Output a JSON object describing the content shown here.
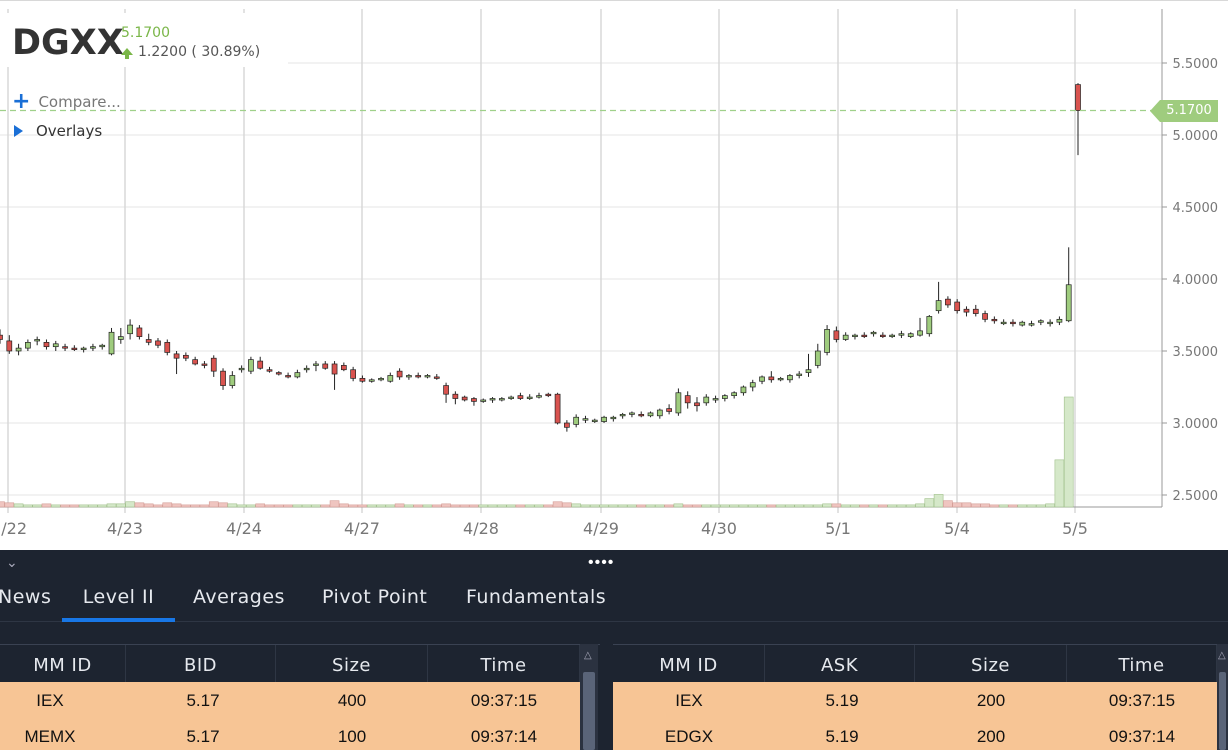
{
  "ticker": {
    "symbol": "DGXX",
    "last_price": "5.1700",
    "change": "1.2200 ( 30.89%)",
    "change_color": "#7ab648"
  },
  "chart_controls": {
    "compare_label": "Compare...",
    "overlays_label": "Overlays"
  },
  "price_tag": "5.1700",
  "chart_data": {
    "type": "candlestick",
    "y_ticks": [
      "5.5000",
      "5.0000",
      "4.5000",
      "4.0000",
      "3.5000",
      "3.0000",
      "2.5000"
    ],
    "ylim": [
      2.45,
      5.65
    ],
    "x_ticks": [
      "/22",
      "4/23",
      "4/24",
      "4/27",
      "4/28",
      "4/29",
      "4/30",
      "5/1",
      "5/4",
      "5/5"
    ],
    "last_price_line": 5.17,
    "colors": {
      "up": "#9fcc7e",
      "down": "#d9534f",
      "grid": "#e6e6e6",
      "vol_up": "#d5e8c9",
      "vol_down": "#efc5c0"
    },
    "candles": [
      [
        3.61,
        3.65,
        3.55,
        3.58
      ],
      [
        3.57,
        3.61,
        3.48,
        3.5
      ],
      [
        3.5,
        3.55,
        3.47,
        3.52
      ],
      [
        3.52,
        3.58,
        3.5,
        3.56
      ],
      [
        3.57,
        3.6,
        3.54,
        3.58
      ],
      [
        3.56,
        3.58,
        3.51,
        3.53
      ],
      [
        3.53,
        3.57,
        3.5,
        3.55
      ],
      [
        3.53,
        3.55,
        3.5,
        3.52
      ],
      [
        3.52,
        3.54,
        3.5,
        3.51
      ],
      [
        3.51,
        3.53,
        3.49,
        3.52
      ],
      [
        3.52,
        3.55,
        3.5,
        3.53
      ],
      [
        3.53,
        3.55,
        3.51,
        3.54
      ],
      [
        3.48,
        3.66,
        3.47,
        3.63
      ],
      [
        3.58,
        3.66,
        3.55,
        3.6
      ],
      [
        3.62,
        3.72,
        3.58,
        3.68
      ],
      [
        3.66,
        3.68,
        3.58,
        3.6
      ],
      [
        3.58,
        3.62,
        3.54,
        3.56
      ],
      [
        3.57,
        3.59,
        3.52,
        3.54
      ],
      [
        3.56,
        3.58,
        3.47,
        3.49
      ],
      [
        3.48,
        3.5,
        3.34,
        3.45
      ],
      [
        3.47,
        3.49,
        3.43,
        3.45
      ],
      [
        3.44,
        3.46,
        3.4,
        3.41
      ],
      [
        3.41,
        3.43,
        3.38,
        3.4
      ],
      [
        3.45,
        3.47,
        3.32,
        3.36
      ],
      [
        3.36,
        3.38,
        3.23,
        3.26
      ],
      [
        3.26,
        3.36,
        3.24,
        3.33
      ],
      [
        3.37,
        3.4,
        3.35,
        3.38
      ],
      [
        3.36,
        3.46,
        3.34,
        3.44
      ],
      [
        3.43,
        3.46,
        3.37,
        3.38
      ],
      [
        3.37,
        3.39,
        3.35,
        3.36
      ],
      [
        3.35,
        3.36,
        3.33,
        3.34
      ],
      [
        3.33,
        3.35,
        3.31,
        3.32
      ],
      [
        3.32,
        3.37,
        3.31,
        3.35
      ],
      [
        3.37,
        3.4,
        3.35,
        3.38
      ],
      [
        3.4,
        3.43,
        3.36,
        3.41
      ],
      [
        3.41,
        3.43,
        3.37,
        3.38
      ],
      [
        3.41,
        3.43,
        3.23,
        3.34
      ],
      [
        3.4,
        3.42,
        3.36,
        3.37
      ],
      [
        3.37,
        3.39,
        3.29,
        3.31
      ],
      [
        3.31,
        3.33,
        3.28,
        3.29
      ],
      [
        3.29,
        3.31,
        3.28,
        3.3
      ],
      [
        3.3,
        3.32,
        3.29,
        3.31
      ],
      [
        3.29,
        3.35,
        3.28,
        3.33
      ],
      [
        3.36,
        3.38,
        3.3,
        3.32
      ],
      [
        3.32,
        3.34,
        3.3,
        3.33
      ],
      [
        3.33,
        3.35,
        3.31,
        3.32
      ],
      [
        3.32,
        3.34,
        3.31,
        3.33
      ],
      [
        3.32,
        3.34,
        3.3,
        3.31
      ],
      [
        3.26,
        3.28,
        3.14,
        3.2
      ],
      [
        3.2,
        3.22,
        3.13,
        3.17
      ],
      [
        3.18,
        3.19,
        3.15,
        3.16
      ],
      [
        3.17,
        3.18,
        3.12,
        3.15
      ],
      [
        3.15,
        3.17,
        3.14,
        3.16
      ],
      [
        3.16,
        3.18,
        3.14,
        3.17
      ],
      [
        3.16,
        3.18,
        3.15,
        3.17
      ],
      [
        3.17,
        3.19,
        3.16,
        3.18
      ],
      [
        3.19,
        3.21,
        3.16,
        3.17
      ],
      [
        3.18,
        3.2,
        3.16,
        3.18
      ],
      [
        3.19,
        3.21,
        3.17,
        3.19
      ],
      [
        3.2,
        3.21,
        3.18,
        3.19
      ],
      [
        3.2,
        3.21,
        2.99,
        3.0
      ],
      [
        3.0,
        3.02,
        2.94,
        2.97
      ],
      [
        2.99,
        3.06,
        2.97,
        3.04
      ],
      [
        3.02,
        3.05,
        3.0,
        3.03
      ],
      [
        3.01,
        3.03,
        3.0,
        3.02
      ],
      [
        3.01,
        3.05,
        3.0,
        3.04
      ],
      [
        3.03,
        3.05,
        3.01,
        3.04
      ],
      [
        3.05,
        3.07,
        3.03,
        3.06
      ],
      [
        3.06,
        3.08,
        3.04,
        3.07
      ],
      [
        3.06,
        3.08,
        3.04,
        3.05
      ],
      [
        3.05,
        3.08,
        3.04,
        3.07
      ],
      [
        3.05,
        3.1,
        3.03,
        3.09
      ],
      [
        3.1,
        3.13,
        3.06,
        3.08
      ],
      [
        3.07,
        3.24,
        3.05,
        3.21
      ],
      [
        3.19,
        3.22,
        3.1,
        3.14
      ],
      [
        3.14,
        3.18,
        3.08,
        3.12
      ],
      [
        3.14,
        3.2,
        3.12,
        3.18
      ],
      [
        3.16,
        3.19,
        3.14,
        3.17
      ],
      [
        3.17,
        3.2,
        3.15,
        3.19
      ],
      [
        3.19,
        3.22,
        3.17,
        3.21
      ],
      [
        3.21,
        3.26,
        3.19,
        3.25
      ],
      [
        3.25,
        3.3,
        3.22,
        3.28
      ],
      [
        3.29,
        3.33,
        3.27,
        3.32
      ],
      [
        3.32,
        3.36,
        3.28,
        3.3
      ],
      [
        3.3,
        3.32,
        3.29,
        3.31
      ],
      [
        3.3,
        3.34,
        3.28,
        3.33
      ],
      [
        3.33,
        3.36,
        3.31,
        3.34
      ],
      [
        3.35,
        3.48,
        3.32,
        3.37
      ],
      [
        3.4,
        3.55,
        3.38,
        3.5
      ],
      [
        3.49,
        3.68,
        3.47,
        3.65
      ],
      [
        3.64,
        3.67,
        3.56,
        3.58
      ],
      [
        3.58,
        3.63,
        3.57,
        3.61
      ],
      [
        3.6,
        3.62,
        3.58,
        3.61
      ],
      [
        3.61,
        3.63,
        3.59,
        3.6
      ],
      [
        3.62,
        3.64,
        3.6,
        3.63
      ],
      [
        3.61,
        3.63,
        3.59,
        3.6
      ],
      [
        3.6,
        3.62,
        3.59,
        3.61
      ],
      [
        3.61,
        3.64,
        3.59,
        3.62
      ],
      [
        3.6,
        3.63,
        3.59,
        3.62
      ],
      [
        3.61,
        3.73,
        3.6,
        3.64
      ],
      [
        3.62,
        3.75,
        3.6,
        3.74
      ],
      [
        3.78,
        3.98,
        3.76,
        3.85
      ],
      [
        3.86,
        3.88,
        3.8,
        3.82
      ],
      [
        3.84,
        3.86,
        3.76,
        3.78
      ],
      [
        3.79,
        3.81,
        3.74,
        3.77
      ],
      [
        3.79,
        3.82,
        3.74,
        3.76
      ],
      [
        3.76,
        3.78,
        3.7,
        3.72
      ],
      [
        3.72,
        3.74,
        3.69,
        3.71
      ],
      [
        3.7,
        3.72,
        3.68,
        3.7
      ],
      [
        3.7,
        3.72,
        3.67,
        3.69
      ],
      [
        3.68,
        3.71,
        3.67,
        3.7
      ],
      [
        3.68,
        3.71,
        3.67,
        3.69
      ],
      [
        3.7,
        3.72,
        3.68,
        3.71
      ],
      [
        3.69,
        3.72,
        3.67,
        3.7
      ],
      [
        3.7,
        3.74,
        3.68,
        3.72
      ],
      [
        3.71,
        4.22,
        3.7,
        3.96
      ],
      [
        5.35,
        5.36,
        4.86,
        5.17
      ]
    ],
    "volumes": [
      0.5,
      0.4,
      0.3,
      0.2,
      0.2,
      0.3,
      0.2,
      0.2,
      0.2,
      0.2,
      0.2,
      0.2,
      0.3,
      0.3,
      0.5,
      0.4,
      0.3,
      0.2,
      0.4,
      0.3,
      0.2,
      0.2,
      0.2,
      0.5,
      0.4,
      0.3,
      0.2,
      0.2,
      0.3,
      0.2,
      0.2,
      0.2,
      0.2,
      0.2,
      0.2,
      0.2,
      0.6,
      0.3,
      0.2,
      0.2,
      0.2,
      0.2,
      0.2,
      0.3,
      0.2,
      0.2,
      0.2,
      0.2,
      0.3,
      0.2,
      0.2,
      0.2,
      0.2,
      0.2,
      0.2,
      0.2,
      0.2,
      0.2,
      0.2,
      0.2,
      0.5,
      0.4,
      0.3,
      0.2,
      0.2,
      0.2,
      0.2,
      0.2,
      0.2,
      0.2,
      0.2,
      0.2,
      0.2,
      0.3,
      0.2,
      0.2,
      0.2,
      0.2,
      0.2,
      0.2,
      0.2,
      0.2,
      0.2,
      0.2,
      0.2,
      0.2,
      0.2,
      0.2,
      0.2,
      0.3,
      0.3,
      0.2,
      0.2,
      0.2,
      0.2,
      0.2,
      0.2,
      0.2,
      0.2,
      0.3,
      0.8,
      1.2,
      0.6,
      0.4,
      0.4,
      0.3,
      0.3,
      0.2,
      0.2,
      0.2,
      0.2,
      0.2,
      0.2,
      0.3,
      4.5,
      10.5
    ]
  },
  "panel": {
    "dots": "••••",
    "tabs": [
      "News",
      "Level II",
      "Averages",
      "Pivot Point",
      "Fundamentals"
    ],
    "active_tab": "Level II",
    "bid_book": {
      "headers": [
        "MM ID",
        "BID",
        "Size",
        "Time"
      ],
      "rows": [
        [
          "IEX",
          "5.17",
          "400",
          "09:37:15"
        ],
        [
          "MEMX",
          "5.17",
          "100",
          "09:37:14"
        ]
      ]
    },
    "ask_book": {
      "headers": [
        "MM ID",
        "ASK",
        "Size",
        "Time"
      ],
      "rows": [
        [
          "IEX",
          "5.19",
          "200",
          "09:37:15"
        ],
        [
          "EDGX",
          "5.19",
          "200",
          "09:37:14"
        ]
      ]
    },
    "row_color": "#f7c595"
  }
}
